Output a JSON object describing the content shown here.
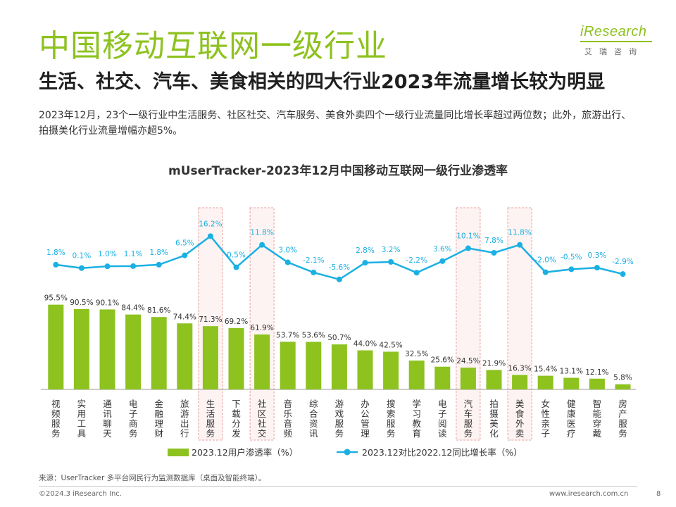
{
  "header": {
    "title": "中国移动互联网一级行业",
    "subtitle": "生活、社交、汽车、美食相关的四大行业2023年流量增长较为明显",
    "description": "2023年12月，23个一级行业中生活服务、社区社交、汽车服务、美食外卖四个一级行业流量同比增长率超过两位数；此外，旅游出行、拍摄美化行业流量增幅亦超5%。"
  },
  "logo": {
    "text": "iResearch",
    "sub": "艾瑞咨询"
  },
  "colors": {
    "brand": "#8dc21f",
    "line": "#1ab0e3",
    "highlight_border": "#e8a0a0",
    "highlight_fill": "#fdf3f2"
  },
  "chart_data": {
    "type": "bar",
    "title": "mUserTracker-2023年12月中国移动互联网一级行业渗透率",
    "categories": [
      "视频服务",
      "实用工具",
      "通讯聊天",
      "电子商务",
      "金融理财",
      "旅游出行",
      "生活服务",
      "下载分发",
      "社区社交",
      "音乐音频",
      "综合资讯",
      "游戏服务",
      "办公管理",
      "搜索服务",
      "学习教育",
      "电子阅读",
      "汽车服务",
      "拍摄美化",
      "美食外卖",
      "女性亲子",
      "健康医疗",
      "智能穿戴",
      "房产服务"
    ],
    "series": [
      {
        "name": "2023.12用户渗透率（%）",
        "type": "bar",
        "unit": "%",
        "values": [
          95.5,
          90.5,
          90.1,
          84.4,
          81.6,
          74.4,
          71.3,
          69.2,
          61.9,
          53.7,
          53.6,
          50.7,
          44.0,
          42.5,
          32.5,
          25.6,
          24.5,
          21.9,
          16.3,
          15.4,
          13.1,
          12.1,
          5.8
        ],
        "labels": [
          "95.5%",
          "90.5%",
          "90.1%",
          "84.4%",
          "81.6%",
          "74.4%",
          "71.3%",
          "69.2%",
          "61.9%",
          "53.7%",
          "53.6%",
          "50.7%",
          "44.0%",
          "42.5%",
          "32.5%",
          "25.6%",
          "24.5%",
          "21.9%",
          "16.3%",
          "15.4%",
          "13.1%",
          "12.1%",
          "5.8%"
        ]
      },
      {
        "name": "2023.12对比2022.12同比增长率（%）",
        "type": "line",
        "unit": "%",
        "values": [
          1.8,
          0.1,
          1.0,
          1.1,
          1.8,
          6.5,
          16.2,
          0.5,
          11.8,
          3.0,
          -2.1,
          -5.6,
          2.8,
          3.2,
          -2.2,
          3.6,
          10.1,
          7.8,
          11.8,
          -2.0,
          -0.5,
          0.3,
          -2.9
        ],
        "labels": [
          "1.8%",
          "0.1%",
          "1.0%",
          "1.1%",
          "1.8%",
          "6.5%",
          "16.2%",
          "0.5%",
          "11.8%",
          "3.0%",
          "-2.1%",
          "-5.6%",
          "2.8%",
          "3.2%",
          "-2.2%",
          "3.6%",
          "10.1%",
          "7.8%",
          "11.8%",
          "-2.0%",
          "-0.5%",
          "0.3%",
          "-2.9%"
        ]
      }
    ],
    "highlighted_categories": [
      "生活服务",
      "社区社交",
      "汽车服务",
      "美食外卖"
    ],
    "legend_position": "bottom",
    "grid": false
  },
  "footer": {
    "source": "来源：UserTracker 多平台网民行为监测数据库（桌面及智能终端）。",
    "copyright": "©2024.3 iResearch Inc.",
    "website": "www.iresearch.com.cn",
    "page_number": "8"
  }
}
